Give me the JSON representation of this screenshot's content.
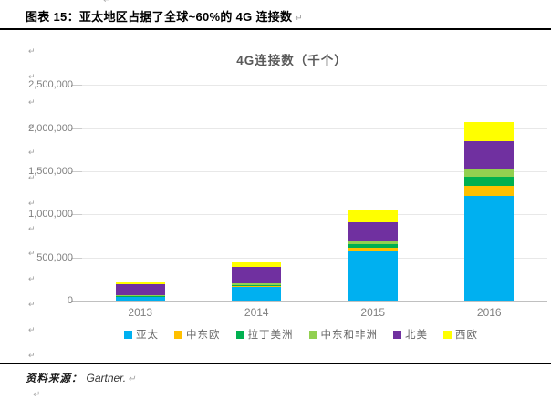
{
  "header": {
    "title": "图表 15：亚太地区占据了全球~60%的 4G 连接数"
  },
  "marks": {
    "pilcrow": "↵"
  },
  "chart_data": {
    "type": "bar",
    "stacked": true,
    "title": "4G连接数（千个）",
    "categories": [
      "2013",
      "2014",
      "2015",
      "2016"
    ],
    "series": [
      {
        "name": "亚太",
        "color": "#00B0F0",
        "values": [
          45000,
          160000,
          580000,
          1215000
        ]
      },
      {
        "name": "中东欧",
        "color": "#FFC000",
        "values": [
          5000,
          10000,
          30000,
          115000
        ]
      },
      {
        "name": "拉丁美洲",
        "color": "#00B050",
        "values": [
          5000,
          10000,
          40000,
          105000
        ]
      },
      {
        "name": "中东和非洲",
        "color": "#92D050",
        "values": [
          10000,
          25000,
          40000,
          90000
        ]
      },
      {
        "name": "北美",
        "color": "#7030A0",
        "values": [
          125000,
          185000,
          215000,
          325000
        ]
      },
      {
        "name": "西欧",
        "color": "#FFFF00",
        "values": [
          20000,
          50000,
          155000,
          220000
        ]
      }
    ],
    "totals": [
      210000,
      440000,
      1060000,
      2070000
    ],
    "ylim": [
      0,
      2500000
    ],
    "ytick_step": 500000,
    "yticks": [
      "0",
      "500,000",
      "1,000,000",
      "1,500,000",
      "2,000,000",
      "2,500,000"
    ],
    "grid": true,
    "legend_position": "bottom"
  },
  "footer": {
    "source_label": "资料来源：",
    "source_value": "Gartner."
  }
}
